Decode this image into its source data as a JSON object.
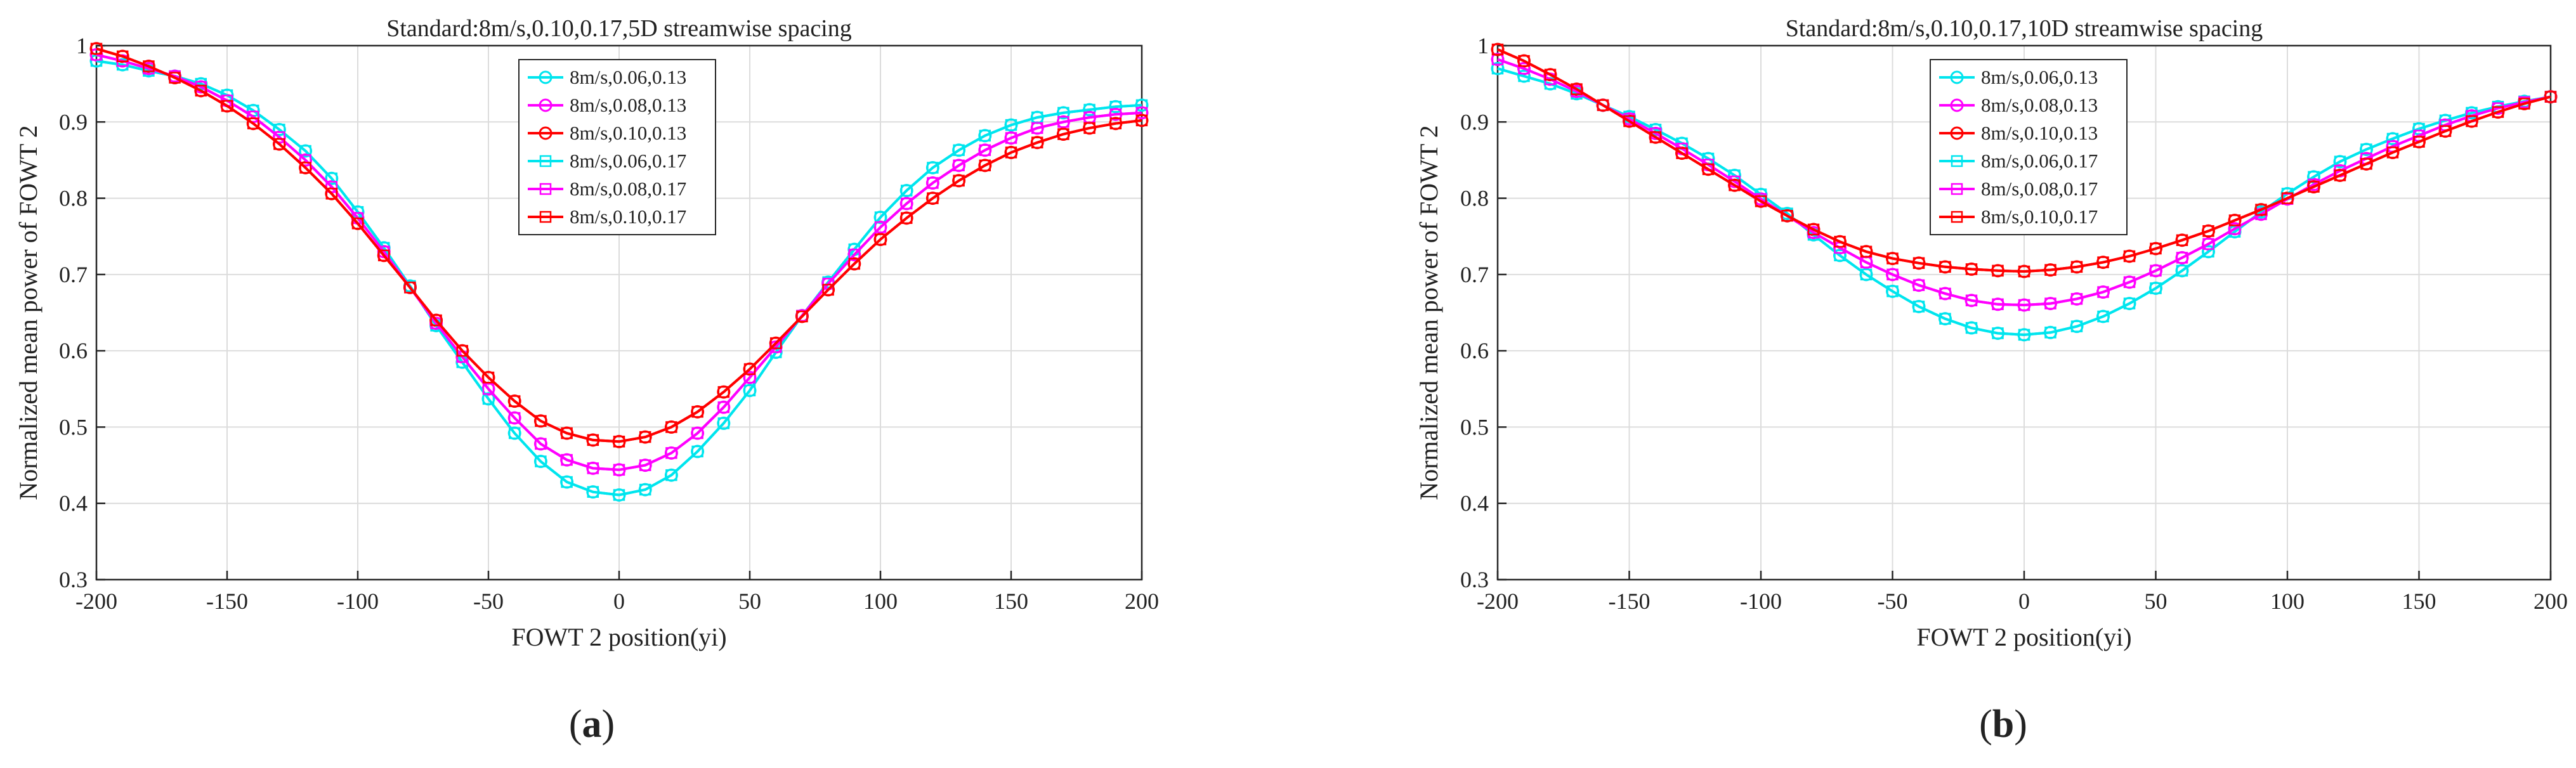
{
  "chart_data": [
    {
      "type": "line",
      "panel": "(a)",
      "panel_letter": "a",
      "title": "Standard:8m/s,0.10,0.17,5D streamwise spacing",
      "xlabel": "FOWT 2 position(yi)",
      "ylabel": "Normalized mean power of FOWT 2",
      "xlim": [
        -200,
        200
      ],
      "ylim": [
        0.3,
        1
      ],
      "xticks": [
        "-200",
        "-150",
        "-100",
        "-50",
        "0",
        "50",
        "100",
        "150",
        "200"
      ],
      "yticks": [
        "0.3",
        "0.4",
        "0.5",
        "0.6",
        "0.7",
        "0.8",
        "0.9",
        "1"
      ],
      "grid": true,
      "legend": "top-center",
      "x": [
        -200,
        -190,
        -180,
        -170,
        -160,
        -150,
        -140,
        -130,
        -120,
        -110,
        -100,
        -90,
        -80,
        -70,
        -60,
        -50,
        -40,
        -30,
        -20,
        -10,
        0,
        10,
        20,
        30,
        40,
        50,
        60,
        70,
        80,
        90,
        100,
        110,
        120,
        130,
        140,
        150,
        160,
        170,
        180,
        190,
        200
      ],
      "series": [
        {
          "name": "8m/s,0.06,0.13",
          "color": "#00e5ee",
          "marker": "circle",
          "values": [
            0.98,
            0.975,
            0.967,
            0.96,
            0.95,
            0.935,
            0.915,
            0.89,
            0.862,
            0.826,
            0.782,
            0.735,
            0.685,
            0.633,
            0.585,
            0.537,
            0.492,
            0.455,
            0.428,
            0.415,
            0.411,
            0.418,
            0.437,
            0.468,
            0.505,
            0.548,
            0.598,
            0.646,
            0.69,
            0.733,
            0.775,
            0.81,
            0.84,
            0.863,
            0.882,
            0.896,
            0.906,
            0.912,
            0.916,
            0.92,
            0.922
          ]
        },
        {
          "name": "8m/s,0.08,0.13",
          "color": "#ff00ff",
          "marker": "circle",
          "values": [
            0.988,
            0.98,
            0.97,
            0.96,
            0.946,
            0.928,
            0.907,
            0.88,
            0.85,
            0.815,
            0.774,
            0.73,
            0.683,
            0.636,
            0.592,
            0.55,
            0.512,
            0.478,
            0.457,
            0.446,
            0.444,
            0.45,
            0.466,
            0.492,
            0.526,
            0.565,
            0.605,
            0.646,
            0.688,
            0.726,
            0.762,
            0.793,
            0.82,
            0.843,
            0.863,
            0.879,
            0.892,
            0.9,
            0.906,
            0.91,
            0.912
          ]
        },
        {
          "name": "8m/s,0.10,0.13",
          "color": "#ff0000",
          "marker": "circle",
          "values": [
            0.996,
            0.986,
            0.973,
            0.958,
            0.941,
            0.921,
            0.898,
            0.871,
            0.84,
            0.806,
            0.767,
            0.725,
            0.683,
            0.64,
            0.6,
            0.565,
            0.534,
            0.508,
            0.492,
            0.483,
            0.481,
            0.487,
            0.5,
            0.52,
            0.546,
            0.576,
            0.61,
            0.645,
            0.68,
            0.714,
            0.746,
            0.774,
            0.8,
            0.823,
            0.843,
            0.86,
            0.873,
            0.884,
            0.892,
            0.898,
            0.902
          ]
        },
        {
          "name": "8m/s,0.06,0.17",
          "color": "#00e5ee",
          "marker": "square",
          "values": [
            0.98,
            0.975,
            0.967,
            0.96,
            0.95,
            0.935,
            0.915,
            0.89,
            0.862,
            0.826,
            0.782,
            0.735,
            0.685,
            0.633,
            0.585,
            0.537,
            0.492,
            0.455,
            0.428,
            0.415,
            0.411,
            0.418,
            0.437,
            0.468,
            0.505,
            0.548,
            0.598,
            0.646,
            0.69,
            0.733,
            0.775,
            0.81,
            0.84,
            0.863,
            0.882,
            0.896,
            0.906,
            0.912,
            0.916,
            0.92,
            0.922
          ]
        },
        {
          "name": "8m/s,0.08,0.17",
          "color": "#ff00ff",
          "marker": "square",
          "values": [
            0.988,
            0.98,
            0.97,
            0.96,
            0.946,
            0.928,
            0.907,
            0.88,
            0.85,
            0.815,
            0.774,
            0.73,
            0.683,
            0.636,
            0.592,
            0.55,
            0.512,
            0.478,
            0.457,
            0.446,
            0.444,
            0.45,
            0.466,
            0.492,
            0.526,
            0.565,
            0.605,
            0.646,
            0.688,
            0.726,
            0.762,
            0.793,
            0.82,
            0.843,
            0.863,
            0.879,
            0.892,
            0.9,
            0.906,
            0.91,
            0.912
          ]
        },
        {
          "name": "8m/s,0.10,0.17",
          "color": "#ff0000",
          "marker": "square",
          "values": [
            0.996,
            0.986,
            0.973,
            0.958,
            0.941,
            0.921,
            0.898,
            0.871,
            0.84,
            0.806,
            0.767,
            0.725,
            0.683,
            0.64,
            0.6,
            0.565,
            0.534,
            0.508,
            0.492,
            0.483,
            0.481,
            0.487,
            0.5,
            0.52,
            0.546,
            0.576,
            0.61,
            0.645,
            0.68,
            0.714,
            0.746,
            0.774,
            0.8,
            0.823,
            0.843,
            0.86,
            0.873,
            0.884,
            0.892,
            0.898,
            0.902
          ]
        }
      ]
    },
    {
      "type": "line",
      "panel": "(b)",
      "panel_letter": "b",
      "title": "Standard:8m/s,0.10,0.17,10D streamwise spacing",
      "xlabel": "FOWT 2 position(yi)",
      "ylabel": "Normalized mean power of FOWT 2",
      "xlim": [
        -200,
        200
      ],
      "ylim": [
        0.3,
        1
      ],
      "xticks": [
        "-200",
        "-150",
        "-100",
        "-50",
        "0",
        "50",
        "100",
        "150",
        "200"
      ],
      "yticks": [
        "0.3",
        "0.4",
        "0.5",
        "0.6",
        "0.7",
        "0.8",
        "0.9",
        "1"
      ],
      "grid": true,
      "legend": "top-center",
      "x": [
        -200,
        -190,
        -180,
        -170,
        -160,
        -150,
        -140,
        -130,
        -120,
        -110,
        -100,
        -90,
        -80,
        -70,
        -60,
        -50,
        -40,
        -30,
        -20,
        -10,
        0,
        10,
        20,
        30,
        40,
        50,
        60,
        70,
        80,
        90,
        100,
        110,
        120,
        130,
        140,
        150,
        160,
        170,
        180,
        190,
        200
      ],
      "series": [
        {
          "name": "8m/s,0.06,0.13",
          "color": "#00e5ee",
          "marker": "circle",
          "values": [
            0.97,
            0.96,
            0.95,
            0.937,
            0.922,
            0.907,
            0.89,
            0.872,
            0.852,
            0.83,
            0.805,
            0.78,
            0.752,
            0.725,
            0.7,
            0.678,
            0.658,
            0.642,
            0.63,
            0.623,
            0.621,
            0.624,
            0.632,
            0.645,
            0.662,
            0.682,
            0.705,
            0.73,
            0.756,
            0.782,
            0.806,
            0.828,
            0.848,
            0.864,
            0.878,
            0.891,
            0.902,
            0.912,
            0.92,
            0.927,
            0.933
          ]
        },
        {
          "name": "8m/s,0.08,0.13",
          "color": "#ff00ff",
          "marker": "circle",
          "values": [
            0.982,
            0.97,
            0.956,
            0.94,
            0.922,
            0.904,
            0.885,
            0.865,
            0.844,
            0.822,
            0.799,
            0.777,
            0.755,
            0.735,
            0.716,
            0.7,
            0.686,
            0.675,
            0.666,
            0.661,
            0.66,
            0.662,
            0.668,
            0.677,
            0.69,
            0.705,
            0.722,
            0.74,
            0.76,
            0.779,
            0.799,
            0.818,
            0.836,
            0.852,
            0.868,
            0.882,
            0.896,
            0.908,
            0.918,
            0.926,
            0.933
          ]
        },
        {
          "name": "8m/s,0.10,0.13",
          "color": "#ff0000",
          "marker": "circle",
          "values": [
            0.995,
            0.98,
            0.962,
            0.943,
            0.922,
            0.901,
            0.88,
            0.859,
            0.838,
            0.817,
            0.796,
            0.777,
            0.759,
            0.743,
            0.73,
            0.721,
            0.715,
            0.71,
            0.707,
            0.705,
            0.704,
            0.706,
            0.71,
            0.716,
            0.724,
            0.734,
            0.745,
            0.757,
            0.771,
            0.785,
            0.8,
            0.815,
            0.83,
            0.845,
            0.86,
            0.874,
            0.888,
            0.901,
            0.913,
            0.924,
            0.933
          ]
        },
        {
          "name": "8m/s,0.06,0.17",
          "color": "#00e5ee",
          "marker": "square",
          "values": [
            0.97,
            0.96,
            0.95,
            0.937,
            0.922,
            0.907,
            0.89,
            0.872,
            0.852,
            0.83,
            0.805,
            0.78,
            0.752,
            0.725,
            0.7,
            0.678,
            0.658,
            0.642,
            0.63,
            0.623,
            0.621,
            0.624,
            0.632,
            0.645,
            0.662,
            0.682,
            0.705,
            0.73,
            0.756,
            0.782,
            0.806,
            0.828,
            0.848,
            0.864,
            0.878,
            0.891,
            0.902,
            0.912,
            0.92,
            0.927,
            0.933
          ]
        },
        {
          "name": "8m/s,0.08,0.17",
          "color": "#ff00ff",
          "marker": "square",
          "values": [
            0.982,
            0.97,
            0.956,
            0.94,
            0.922,
            0.904,
            0.885,
            0.865,
            0.844,
            0.822,
            0.799,
            0.777,
            0.755,
            0.735,
            0.716,
            0.7,
            0.686,
            0.675,
            0.666,
            0.661,
            0.66,
            0.662,
            0.668,
            0.677,
            0.69,
            0.705,
            0.722,
            0.74,
            0.76,
            0.779,
            0.799,
            0.818,
            0.836,
            0.852,
            0.868,
            0.882,
            0.896,
            0.908,
            0.918,
            0.926,
            0.933
          ]
        },
        {
          "name": "8m/s,0.10,0.17",
          "color": "#ff0000",
          "marker": "square",
          "values": [
            0.995,
            0.98,
            0.962,
            0.943,
            0.922,
            0.901,
            0.88,
            0.859,
            0.838,
            0.817,
            0.796,
            0.777,
            0.759,
            0.743,
            0.73,
            0.721,
            0.715,
            0.71,
            0.707,
            0.705,
            0.704,
            0.706,
            0.71,
            0.716,
            0.724,
            0.734,
            0.745,
            0.757,
            0.771,
            0.785,
            0.8,
            0.815,
            0.83,
            0.845,
            0.86,
            0.874,
            0.888,
            0.901,
            0.913,
            0.924,
            0.933
          ]
        }
      ]
    }
  ]
}
